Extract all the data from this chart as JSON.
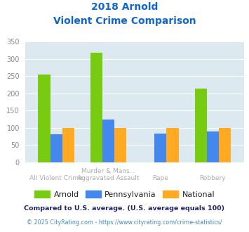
{
  "title_line1": "2018 Arnold",
  "title_line2": "Violent Crime Comparison",
  "cat_labels_top": [
    "",
    "Murder & Mans...",
    "",
    ""
  ],
  "cat_labels_bottom": [
    "All Violent Crime",
    "Aggravated Assault",
    "Rape",
    "Robbery"
  ],
  "arnold_values": [
    255,
    318,
    0,
    215
  ],
  "pennsylvania_values": [
    81,
    125,
    83,
    89
  ],
  "national_values": [
    100,
    100,
    100,
    100
  ],
  "arnold_color": "#77cc11",
  "pennsylvania_color": "#4488ee",
  "national_color": "#ffaa22",
  "ylim": [
    0,
    350
  ],
  "yticks": [
    0,
    50,
    100,
    150,
    200,
    250,
    300,
    350
  ],
  "background_color": "#dce9f0",
  "title_color": "#1166cc",
  "footnote1": "Compared to U.S. average. (U.S. average equals 100)",
  "footnote2": "© 2025 CityRating.com - https://www.cityrating.com/crime-statistics/",
  "footnote1_color": "#222266",
  "footnote2_color": "#4488bb",
  "legend_labels": [
    "Arnold",
    "Pennsylvania",
    "National"
  ],
  "legend_text_color": "#222222",
  "bar_width": 0.23
}
